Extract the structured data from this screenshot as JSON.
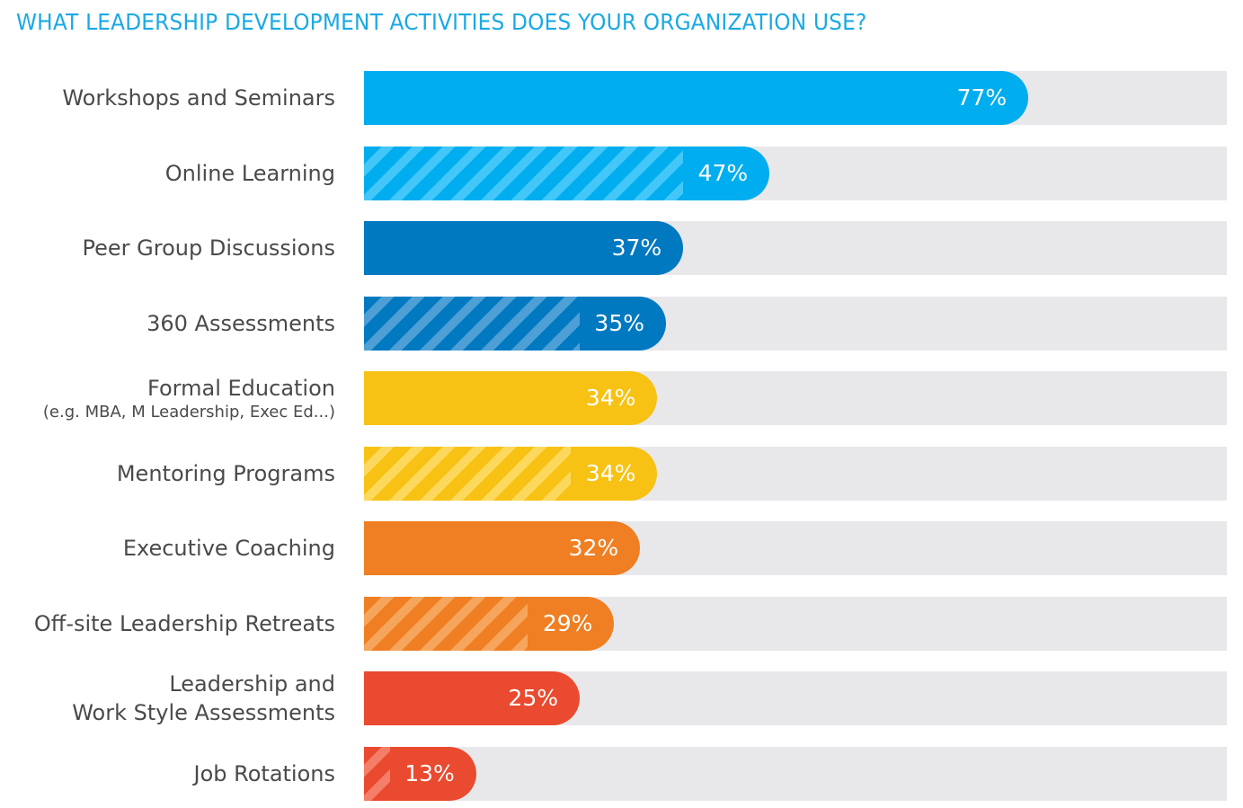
{
  "chart_data": {
    "type": "bar",
    "orientation": "horizontal",
    "title": "WHAT LEADERSHIP DEVELOPMENT ACTIVITIES DOES YOUR ORGANIZATION USE?",
    "xlim": [
      0,
      100
    ],
    "grid": false,
    "categories": [
      {
        "label": "Workshops and Seminars",
        "sub": ""
      },
      {
        "label": "Online Learning",
        "sub": ""
      },
      {
        "label": "Peer Group Discussions",
        "sub": ""
      },
      {
        "label": "360 Assessments",
        "sub": ""
      },
      {
        "label": "Formal Education",
        "sub": "(e.g. MBA, M Leadership, Exec Ed...)"
      },
      {
        "label": "Mentoring Programs",
        "sub": ""
      },
      {
        "label": "Executive Coaching",
        "sub": ""
      },
      {
        "label": "Off-site Leadership Retreats",
        "sub": ""
      },
      {
        "label": "Leadership and",
        "sub": "Work Style Assessments"
      },
      {
        "label": "Job Rotations",
        "sub": ""
      }
    ],
    "values": [
      77,
      47,
      37,
      35,
      34,
      34,
      32,
      29,
      25,
      13
    ],
    "data_labels": [
      "77%",
      "47%",
      "37%",
      "35%",
      "34%",
      "34%",
      "32%",
      "29%",
      "25%",
      "13%"
    ],
    "colors": [
      "#00adef",
      "#00adef",
      "#0079c1",
      "#0079c1",
      "#f7c213",
      "#f7c213",
      "#ef7f22",
      "#ef7f22",
      "#ea4a2f",
      "#ea4a2f"
    ],
    "hatched": [
      false,
      true,
      false,
      true,
      false,
      true,
      false,
      true,
      false,
      true
    ],
    "track_color": "#e8e8eb"
  }
}
